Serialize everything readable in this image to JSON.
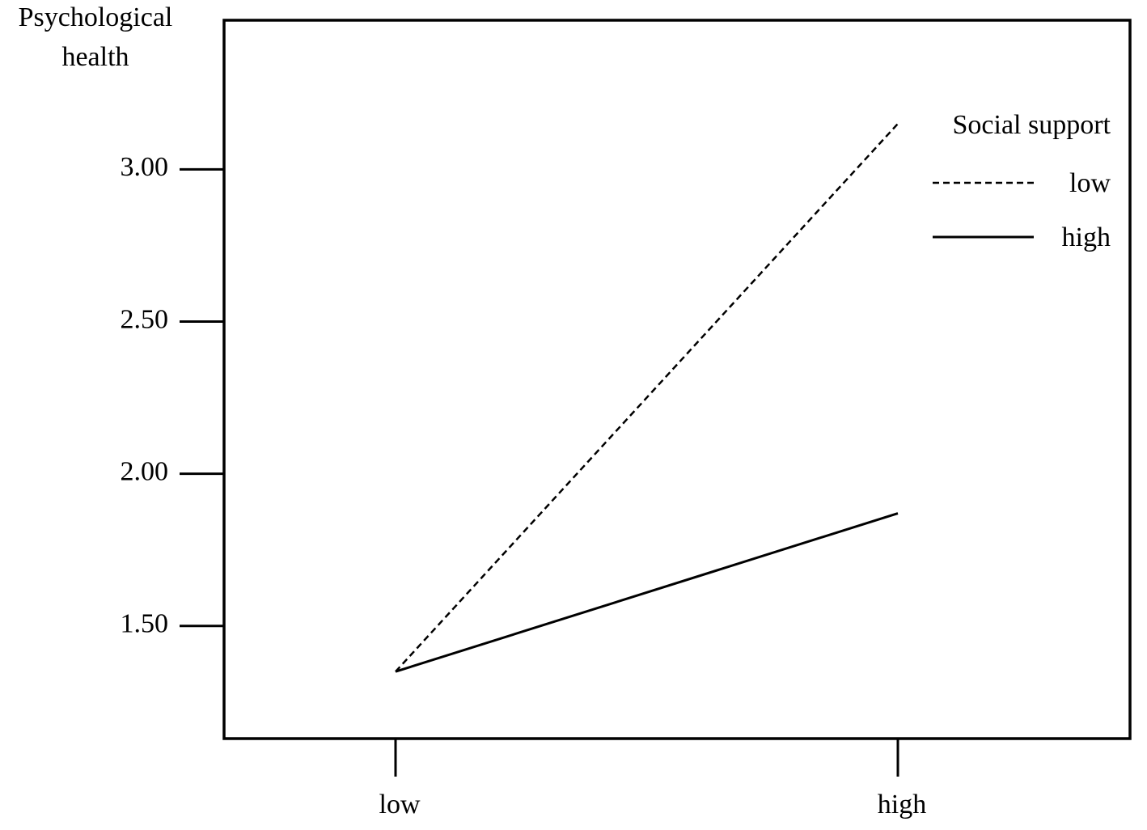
{
  "chart_data": {
    "type": "line",
    "y_label": [
      "Psychological",
      "health"
    ],
    "categories": [
      "low",
      "high"
    ],
    "series": [
      {
        "name": "low",
        "color": "#000000",
        "line_style": "dashed",
        "values": [
          1.35,
          3.15
        ]
      },
      {
        "name": "high",
        "color": "#000000",
        "line_style": "solid",
        "values": [
          1.35,
          1.87
        ]
      }
    ],
    "legend_title": "Social support",
    "legend_position": "upper right",
    "ylim": [
      1.13,
      3.49
    ],
    "yticks": [
      {
        "value": 1.5,
        "label": "1.50"
      },
      {
        "value": 2,
        "label": "2.00"
      },
      {
        "value": 2.5,
        "label": "2.50"
      },
      {
        "value": 3,
        "label": "3.00"
      }
    ],
    "grid": false
  }
}
